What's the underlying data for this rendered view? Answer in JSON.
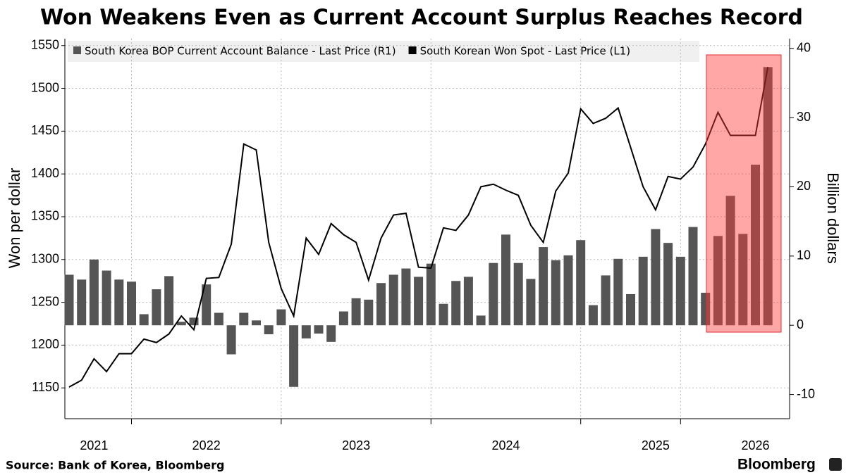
{
  "chart_data": {
    "type": "combo",
    "title": "Won Weakens Even as Current Account Surplus Reaches Record",
    "source": "Source: Bank of Korea, Bloomberg",
    "brand": "Bloomberg",
    "ylabel": "Won per dollar",
    "y2label": "Billion dollars",
    "categories": [
      null,
      null,
      "2021",
      null,
      null,
      null,
      null,
      null,
      null,
      null,
      null,
      "2022",
      null,
      null,
      null,
      null,
      null,
      null,
      null,
      null,
      null,
      null,
      null,
      "2023",
      null,
      null,
      null,
      null,
      null,
      null,
      null,
      null,
      null,
      null,
      null,
      "2024",
      null,
      null,
      null,
      null,
      null,
      null,
      null,
      null,
      null,
      null,
      null,
      "2025",
      null,
      null,
      null,
      null,
      null,
      null,
      null,
      "2026",
      null
    ],
    "ylim": [
      1114,
      1558
    ],
    "yticks": [
      1150,
      1200,
      1250,
      1300,
      1350,
      1400,
      1450,
      1500,
      1550
    ],
    "y2lim": [
      -13.5,
      41.4
    ],
    "y2ticks": [
      -10,
      0,
      10,
      20,
      30,
      40
    ],
    "grid": true,
    "series": [
      {
        "name": "South Korea BOP Current Account Balance - Last Price (R1)",
        "type": "bar",
        "axis": "y2",
        "color": "#555555",
        "values": [
          7.3,
          6.6,
          9.5,
          7.9,
          6.6,
          6.3,
          1.6,
          5.2,
          7.1,
          0.5,
          1.1,
          5.9,
          1.8,
          -4.2,
          1.8,
          0.7,
          -1.3,
          2.3,
          -8.9,
          -1.9,
          -1.2,
          -2.4,
          2.0,
          3.9,
          3.7,
          6.1,
          7.3,
          8.2,
          7.0,
          8.9,
          3.1,
          6.4,
          7.0,
          1.4,
          9.0,
          13.1,
          9.0,
          6.7,
          11.3,
          9.4,
          10.1,
          12.3,
          2.9,
          7.2,
          9.6,
          4.5,
          9.9,
          13.9,
          11.9,
          9.9,
          14.2,
          4.7,
          12.9,
          18.7,
          13.2,
          23.2,
          37.3
        ]
      },
      {
        "name": "South Korean Won Spot - Last Price (L1)",
        "type": "line",
        "axis": "y",
        "color": "#000000",
        "values": [
          1151,
          1159,
          1184,
          1169,
          1190,
          1190,
          1207,
          1203,
          1213,
          1234,
          1218,
          1278,
          1279,
          1318,
          1435,
          1428,
          1320,
          1266,
          1234,
          1325,
          1306,
          1342,
          1329,
          1320,
          1276,
          1325,
          1352,
          1354,
          1291,
          1290,
          1337,
          1334,
          1352,
          1385,
          1388,
          1381,
          1375,
          1340,
          1320,
          1380,
          1401,
          1476,
          1459,
          1465,
          1477,
          1431,
          1385,
          1358,
          1397,
          1394,
          1408,
          1435,
          1472,
          1445,
          1445,
          1445,
          1525
        ]
      }
    ]
  }
}
